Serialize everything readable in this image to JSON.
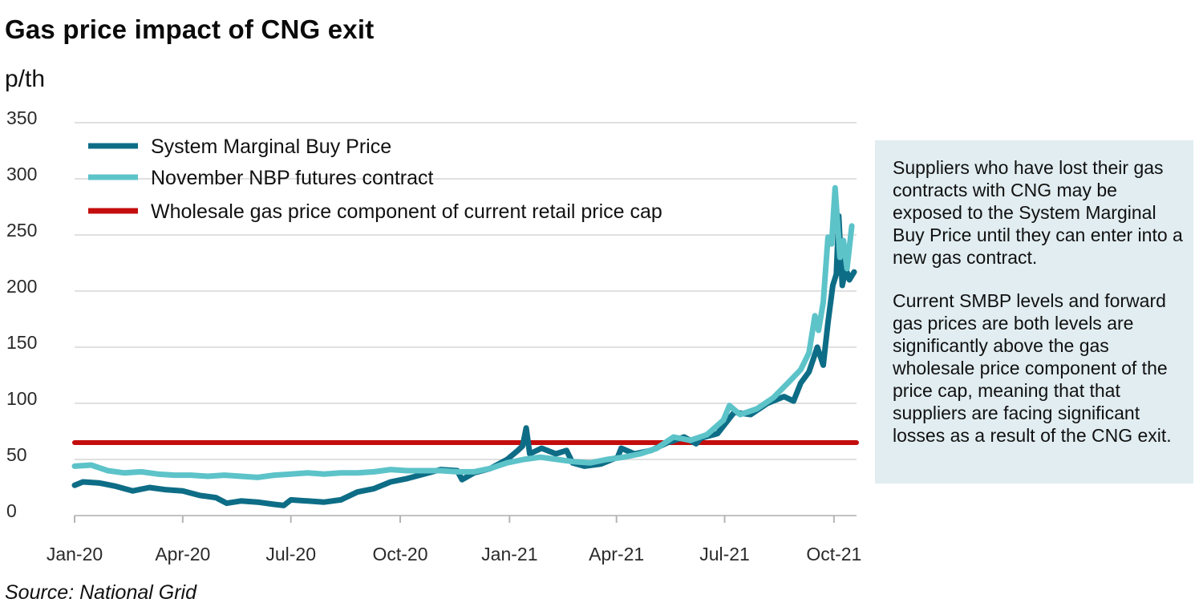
{
  "header": {
    "title": "Gas price impact of CNG exit",
    "unit": "p/th"
  },
  "note": {
    "paragraph1": "Suppliers who have lost their gas contracts with CNG may be exposed to the System Marginal Buy Price until they can enter into a new gas contract.",
    "paragraph2": "Current SMBP levels and forward gas prices are both levels are significantly above the gas wholesale price component of the price cap, meaning that that suppliers are facing significant losses as a result of the CNG exit."
  },
  "source": "Source: National Grid",
  "colors": {
    "smbp": "#0e6d86",
    "nbp": "#5cc3c9",
    "cap": "#c40d0d",
    "grid": "#d6d6d6",
    "note_bg": "#e1edf1"
  },
  "chart_data": {
    "type": "line",
    "x_type": "date",
    "x_range": [
      "2020-01-01",
      "2021-10-20"
    ],
    "ylim": [
      0,
      350
    ],
    "y_ticks": [
      0,
      50,
      100,
      150,
      200,
      250,
      300,
      350
    ],
    "x_ticks": [
      {
        "date": "2020-01-01",
        "label": "Jan-20"
      },
      {
        "date": "2020-04-01",
        "label": "Apr-20"
      },
      {
        "date": "2020-07-01",
        "label": "Jul-20"
      },
      {
        "date": "2020-10-01",
        "label": "Oct-20"
      },
      {
        "date": "2021-01-01",
        "label": "Jan-21"
      },
      {
        "date": "2021-04-01",
        "label": "Apr-21"
      },
      {
        "date": "2021-07-01",
        "label": "Jul-21"
      },
      {
        "date": "2021-10-01",
        "label": "Oct-21"
      }
    ],
    "grid": true,
    "legend_position": "top-left",
    "series": [
      {
        "name": "System Marginal Buy Price",
        "color": "#0e6d86",
        "points": [
          [
            "2020-01-01",
            27
          ],
          [
            "2020-01-08",
            30
          ],
          [
            "2020-01-22",
            29
          ],
          [
            "2020-02-05",
            26
          ],
          [
            "2020-02-19",
            22
          ],
          [
            "2020-03-04",
            25
          ],
          [
            "2020-03-18",
            23
          ],
          [
            "2020-04-01",
            22
          ],
          [
            "2020-04-15",
            18
          ],
          [
            "2020-04-29",
            16
          ],
          [
            "2020-05-08",
            11
          ],
          [
            "2020-05-20",
            13
          ],
          [
            "2020-06-03",
            12
          ],
          [
            "2020-06-17",
            10
          ],
          [
            "2020-06-25",
            9
          ],
          [
            "2020-07-01",
            14
          ],
          [
            "2020-07-15",
            13
          ],
          [
            "2020-07-29",
            12
          ],
          [
            "2020-08-12",
            14
          ],
          [
            "2020-08-26",
            21
          ],
          [
            "2020-09-09",
            24
          ],
          [
            "2020-09-23",
            30
          ],
          [
            "2020-10-07",
            33
          ],
          [
            "2020-10-21",
            37
          ],
          [
            "2020-11-04",
            41
          ],
          [
            "2020-11-18",
            40
          ],
          [
            "2020-11-22",
            32
          ],
          [
            "2020-12-02",
            38
          ],
          [
            "2020-12-16",
            42
          ],
          [
            "2020-12-30",
            50
          ],
          [
            "2021-01-08",
            58
          ],
          [
            "2021-01-12",
            62
          ],
          [
            "2021-01-15",
            78
          ],
          [
            "2021-01-18",
            55
          ],
          [
            "2021-01-28",
            60
          ],
          [
            "2021-02-09",
            55
          ],
          [
            "2021-02-18",
            58
          ],
          [
            "2021-02-23",
            47
          ],
          [
            "2021-03-05",
            44
          ],
          [
            "2021-03-19",
            46
          ],
          [
            "2021-04-02",
            52
          ],
          [
            "2021-04-05",
            60
          ],
          [
            "2021-04-16",
            55
          ],
          [
            "2021-04-30",
            58
          ],
          [
            "2021-05-14",
            65
          ],
          [
            "2021-05-28",
            70
          ],
          [
            "2021-06-07",
            64
          ],
          [
            "2021-06-11",
            69
          ],
          [
            "2021-06-25",
            73
          ],
          [
            "2021-07-09",
            92
          ],
          [
            "2021-07-23",
            90
          ],
          [
            "2021-08-06",
            100
          ],
          [
            "2021-08-20",
            106
          ],
          [
            "2021-08-28",
            102
          ],
          [
            "2021-09-03",
            118
          ],
          [
            "2021-09-10",
            128
          ],
          [
            "2021-09-17",
            150
          ],
          [
            "2021-09-22",
            134
          ],
          [
            "2021-09-26",
            172
          ],
          [
            "2021-09-30",
            205
          ],
          [
            "2021-10-03",
            215
          ],
          [
            "2021-10-05",
            267
          ],
          [
            "2021-10-08",
            205
          ],
          [
            "2021-10-11",
            220
          ],
          [
            "2021-10-14",
            210
          ],
          [
            "2021-10-18",
            217
          ]
        ]
      },
      {
        "name": "November NBP futures contract",
        "color": "#5cc3c9",
        "points": [
          [
            "2020-01-01",
            44
          ],
          [
            "2020-01-15",
            45
          ],
          [
            "2020-01-29",
            40
          ],
          [
            "2020-02-12",
            38
          ],
          [
            "2020-02-26",
            39
          ],
          [
            "2020-03-11",
            37
          ],
          [
            "2020-03-25",
            36
          ],
          [
            "2020-04-08",
            36
          ],
          [
            "2020-04-22",
            35
          ],
          [
            "2020-05-06",
            36
          ],
          [
            "2020-05-20",
            35
          ],
          [
            "2020-06-03",
            34
          ],
          [
            "2020-06-17",
            36
          ],
          [
            "2020-07-01",
            37
          ],
          [
            "2020-07-15",
            38
          ],
          [
            "2020-07-29",
            37
          ],
          [
            "2020-08-12",
            38
          ],
          [
            "2020-08-26",
            38
          ],
          [
            "2020-09-09",
            39
          ],
          [
            "2020-09-23",
            41
          ],
          [
            "2020-10-07",
            40
          ],
          [
            "2020-10-21",
            40
          ],
          [
            "2020-11-04",
            40
          ],
          [
            "2020-11-18",
            39
          ],
          [
            "2020-12-02",
            39
          ],
          [
            "2020-12-16",
            42
          ],
          [
            "2020-12-30",
            47
          ],
          [
            "2021-01-13",
            50
          ],
          [
            "2021-01-27",
            52
          ],
          [
            "2021-02-10",
            50
          ],
          [
            "2021-02-24",
            48
          ],
          [
            "2021-03-10",
            47
          ],
          [
            "2021-03-24",
            50
          ],
          [
            "2021-04-07",
            52
          ],
          [
            "2021-04-21",
            55
          ],
          [
            "2021-05-05",
            60
          ],
          [
            "2021-05-19",
            70
          ],
          [
            "2021-06-02",
            67
          ],
          [
            "2021-06-16",
            72
          ],
          [
            "2021-06-30",
            85
          ],
          [
            "2021-07-05",
            98
          ],
          [
            "2021-07-14",
            90
          ],
          [
            "2021-07-28",
            95
          ],
          [
            "2021-08-11",
            105
          ],
          [
            "2021-08-25",
            120
          ],
          [
            "2021-09-03",
            130
          ],
          [
            "2021-09-10",
            145
          ],
          [
            "2021-09-15",
            178
          ],
          [
            "2021-09-18",
            165
          ],
          [
            "2021-09-22",
            190
          ],
          [
            "2021-09-26",
            248
          ],
          [
            "2021-09-29",
            242
          ],
          [
            "2021-10-02",
            292
          ],
          [
            "2021-10-06",
            230
          ],
          [
            "2021-10-09",
            245
          ],
          [
            "2021-10-12",
            220
          ],
          [
            "2021-10-16",
            258
          ]
        ]
      },
      {
        "name": "Wholesale gas price component of current retail price cap",
        "color": "#c40d0d",
        "points": [
          [
            "2020-01-01",
            65
          ],
          [
            "2021-10-20",
            65
          ]
        ]
      }
    ]
  }
}
